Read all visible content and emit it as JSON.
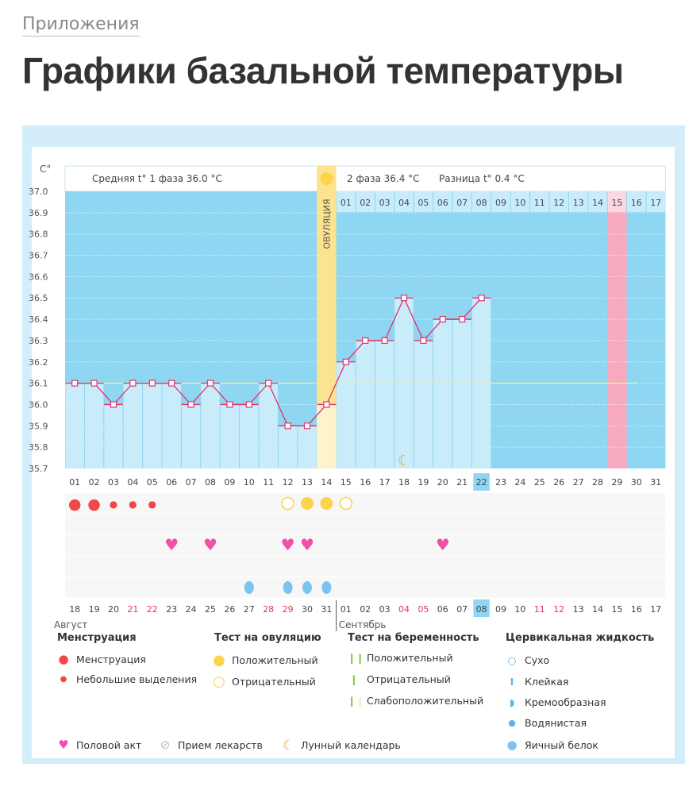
{
  "breadcrumb": "Приложения",
  "title": "Графики базальной температуры",
  "chart_data": {
    "type": "line",
    "ylabel": "C°",
    "ylim": [
      35.7,
      37.0
    ],
    "yticks": [
      "37.0",
      "36.9",
      "36.8",
      "36.7",
      "36.6",
      "36.5",
      "36.4",
      "36.3",
      "36.2",
      "36.1",
      "36.0",
      "35.9",
      "35.8",
      "35.7"
    ],
    "cycle_days": [
      "01",
      "02",
      "03",
      "04",
      "05",
      "06",
      "07",
      "08",
      "09",
      "10",
      "11",
      "12",
      "13",
      "14",
      "15",
      "16",
      "17",
      "18",
      "19",
      "20",
      "21",
      "22",
      "23",
      "24",
      "25",
      "26",
      "27",
      "28",
      "29",
      "30",
      "31"
    ],
    "temperatures": [
      36.1,
      36.1,
      36.0,
      36.1,
      36.1,
      36.1,
      36.0,
      36.1,
      36.0,
      36.0,
      36.1,
      35.9,
      35.9,
      36.0,
      36.2,
      36.3,
      36.3,
      36.5,
      36.3,
      36.4,
      36.4,
      36.5
    ],
    "coverline": 36.1,
    "ovulation_day": 14,
    "ovulation_label": "ОВУЛЯЦИЯ",
    "phase1_text": "Средняя t° 1 фаза 36.0 °C",
    "phase2_text": "2 фаза 36.4 °C",
    "diff_text": "Разница t° 0.4 °C",
    "phase2_days": [
      "01",
      "02",
      "03",
      "04",
      "05",
      "06",
      "07",
      "08",
      "09",
      "10",
      "11",
      "12",
      "13",
      "14",
      "15",
      "16",
      "17"
    ],
    "expected_period_day": 29,
    "current_day": 22,
    "moon_day": 18,
    "dates": [
      "18",
      "19",
      "20",
      "21",
      "22",
      "23",
      "24",
      "25",
      "26",
      "27",
      "28",
      "29",
      "30",
      "31",
      "01",
      "02",
      "03",
      "04",
      "05",
      "06",
      "07",
      "08",
      "09",
      "10",
      "11",
      "12",
      "13",
      "14",
      "15",
      "16",
      "17"
    ],
    "weekend_dates_idx": [
      3,
      4,
      10,
      11,
      17,
      18,
      24,
      25
    ],
    "current_date_idx": 21,
    "months": [
      "Август",
      "Сентябрь"
    ],
    "menstruation": {
      "heavy": [
        1,
        2
      ],
      "light": [
        3,
        4,
        5
      ]
    },
    "ovulation_test": {
      "positive": [
        13,
        14
      ],
      "negative": [
        12,
        15
      ]
    },
    "intercourse": [
      6,
      8,
      12,
      13,
      20
    ],
    "cervical_fluid_egg_white": [
      10,
      12,
      13,
      14
    ],
    "colors": {
      "plot_bg": "#8ed6f1",
      "filled": "#c9ecfa",
      "line": "#e0336e",
      "ovulation": "#fbe38f",
      "period": "#f7a9c0",
      "coverline": "#e8ef9a"
    }
  },
  "legend": {
    "menstruation": {
      "title": "Менструация",
      "items": [
        "Менструация",
        "Небольшие выделения"
      ]
    },
    "ovulation_test": {
      "title": "Тест на овуляцию",
      "items": [
        "Положительный",
        "Отрицательный"
      ]
    },
    "pregnancy_test": {
      "title": "Тест на беременность",
      "items": [
        "Положительный",
        "Отрицательный",
        "Слабоположительный"
      ]
    },
    "cervical": {
      "title": "Цервикальная жидкость",
      "items": [
        "Сухо",
        "Клейкая",
        "Кремообразная",
        "Водянистая",
        "Яичный белок"
      ]
    },
    "other": [
      "Половой акт",
      "Прием лекарств",
      "Лунный календарь"
    ]
  }
}
